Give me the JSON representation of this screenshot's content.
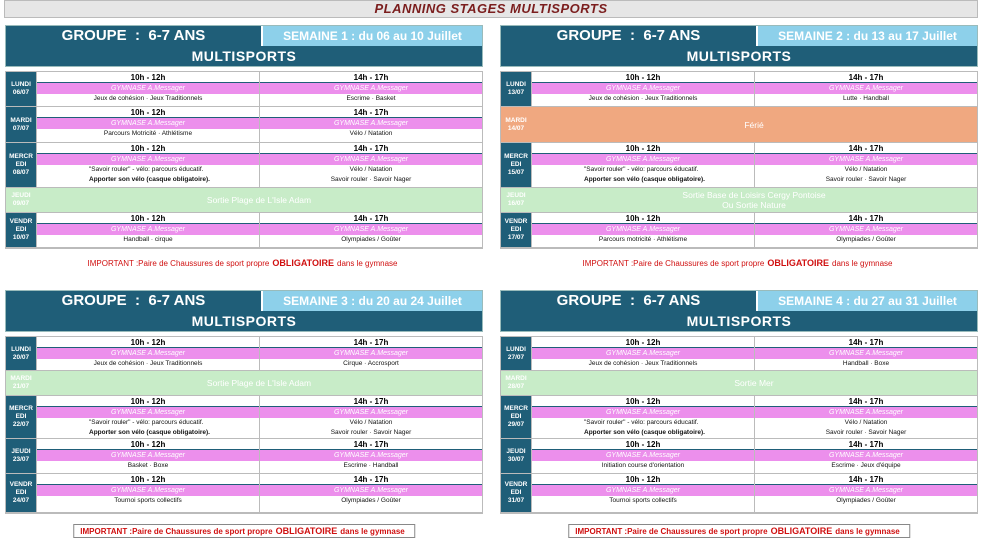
{
  "title": "PLANNING STAGES MULTISPORTS",
  "weeks": [
    {
      "group": "GROUPE  :  6-7 ANS",
      "week": "SEMAINE 1 : du 06 au 10 Juillet",
      "activity": "MULTISPORTS",
      "days": [
        {
          "day": "LUNDI",
          "date": "06/07",
          "slots": [
            {
              "time": "10h - 12h",
              "place": "GYMNASE A.Messager",
              "lines": [
                "Jeux de cohésion · Jeux Traditionnels"
              ]
            },
            {
              "time": "14h - 17h",
              "place": "GYMNASE A.Messager",
              "lines": [
                "Escrime · Basket"
              ]
            }
          ]
        },
        {
          "day": "MARDI",
          "date": "07/07",
          "slots": [
            {
              "time": "10h - 12h",
              "place": "GYMNASE A.Messager",
              "lines": [
                "Parcours Motricité · Athlétisme"
              ]
            },
            {
              "time": "14h - 17h",
              "place": "GYMNASE A.Messager",
              "lines": [
                "Vélo / Natation"
              ]
            }
          ]
        },
        {
          "day": "MERCREDI",
          "date": "08/07",
          "slots": [
            {
              "time": "10h - 12h",
              "place": "GYMNASE A.Messager",
              "lines": [
                "\"Savoir rouler\" - vélo: parcours éducatif."
              ],
              "note": "Apporter son vélo (casque obligatoire)."
            },
            {
              "time": "14h - 17h",
              "place": "GYMNASE A.Messager",
              "lines": [
                "Vélo / Natation",
                "Savoir rouler · Savoir Nager"
              ]
            }
          ]
        },
        {
          "day": "JEUDI",
          "date": "09/07",
          "outing": [
            "Sortie Plage de L'Isle Adam"
          ]
        },
        {
          "day": "VENDREDI",
          "date": "10/07",
          "slots": [
            {
              "time": "10h - 12h",
              "place": "GYMNASE A.Messager",
              "lines": [
                "Handball · cirque"
              ]
            },
            {
              "time": "14h - 17h",
              "place": "GYMNASE A.Messager",
              "lines": [
                "Olympiades / Goûter"
              ]
            }
          ]
        }
      ],
      "notice": {
        "lead": "IMPORTANT :Paire de Chaussures de sport propre",
        "strong": "OBLIGATOIRE",
        "tail": "dans le gymnase"
      }
    },
    {
      "group": "GROUPE  :  6-7 ANS",
      "week": "SEMAINE 2 : du 13 au 17 Juillet",
      "activity": "MULTISPORTS",
      "days": [
        {
          "day": "LUNDI",
          "date": "13/07",
          "slots": [
            {
              "time": "10h - 12h",
              "place": "GYMNASE A.Messager",
              "lines": [
                "Jeux de cohésion · Jeux Traditionnels"
              ]
            },
            {
              "time": "14h - 17h",
              "place": "GYMNASE A.Messager",
              "lines": [
                "Lutte · Handball"
              ]
            }
          ]
        },
        {
          "day": "MARDI",
          "date": "14/07",
          "holiday": "Férié"
        },
        {
          "day": "MERCREDI",
          "date": "15/07",
          "slots": [
            {
              "time": "10h - 12h",
              "place": "GYMNASE A.Messager",
              "lines": [
                "\"Savoir rouler\" - vélo: parcours éducatif."
              ],
              "note": "Apporter son vélo (casque obligatoire)."
            },
            {
              "time": "14h - 17h",
              "place": "GYMNASE A.Messager",
              "lines": [
                "Vélo / Natation",
                "Savoir rouler · Savoir Nager"
              ]
            }
          ]
        },
        {
          "day": "JEUDI",
          "date": "16/07",
          "outing": [
            "Sortie Base de Loisirs Cergy Pontoise",
            "Ou Sortie Nature"
          ]
        },
        {
          "day": "VENDREDI",
          "date": "17/07",
          "slots": [
            {
              "time": "10h - 12h",
              "place": "GYMNASE A.Messager",
              "lines": [
                "Parcours motricité · Athlétisme"
              ]
            },
            {
              "time": "14h - 17h",
              "place": "GYMNASE A.Messager",
              "lines": [
                "Olympiades / Goûter"
              ]
            }
          ]
        }
      ],
      "notice": {
        "lead": "IMPORTANT :Paire de Chaussures de sport propre",
        "strong": "OBLIGATOIRE",
        "tail": "dans le gymnase"
      }
    },
    {
      "group": "GROUPE  :  6-7 ANS",
      "week": "SEMAINE 3 : du 20 au 24 Juillet",
      "activity": "MULTISPORTS",
      "days": [
        {
          "day": "LUNDI",
          "date": "20/07",
          "slots": [
            {
              "time": "10h - 12h",
              "place": "GYMNASE A.Messager",
              "lines": [
                "Jeux de cohésion · Jeux Traditionnels"
              ]
            },
            {
              "time": "14h - 17h",
              "place": "GYMNASE A.Messager",
              "lines": [
                "Cirque · Accrosport"
              ]
            }
          ]
        },
        {
          "day": "MARDI",
          "date": "21/07",
          "outing": [
            "Sortie Plage de L'Isle Adam"
          ]
        },
        {
          "day": "MERCREDI",
          "date": "22/07",
          "slots": [
            {
              "time": "10h - 12h",
              "place": "GYMNASE A.Messager",
              "lines": [
                "\"Savoir rouler\" - vélo: parcours éducatif."
              ],
              "note": "Apporter son vélo (casque obligatoire)."
            },
            {
              "time": "14h - 17h",
              "place": "GYMNASE A.Messager",
              "lines": [
                "Vélo / Natation",
                "Savoir rouler · Savoir Nager"
              ]
            }
          ]
        },
        {
          "day": "JEUDI",
          "date": "23/07",
          "slots": [
            {
              "time": "10h - 12h",
              "place": "GYMNASE A.Messager",
              "lines": [
                "Basket · Boxe"
              ]
            },
            {
              "time": "14h - 17h",
              "place": "GYMNASE A.Messager",
              "lines": [
                "Escrime · Handball"
              ]
            }
          ]
        },
        {
          "day": "VENDREDI",
          "date": "24/07",
          "slots": [
            {
              "time": "10h - 12h",
              "place": "GYMNASE A.Messager",
              "lines": [
                "Tournoi sports collectifs"
              ]
            },
            {
              "time": "14h - 17h",
              "place": "GYMNASE A.Messager",
              "lines": [
                "Olympiades / Goûter"
              ]
            }
          ]
        }
      ],
      "notice": {
        "lead": "IMPORTANT :Paire de Chaussures de sport propre",
        "strong": "OBLIGATOIRE",
        "tail": "dans le gymnase"
      }
    },
    {
      "group": "GROUPE  :  6-7 ANS",
      "week": "SEMAINE 4 : du 27 au 31 Juillet",
      "activity": "MULTISPORTS",
      "days": [
        {
          "day": "LUNDI",
          "date": "27/07",
          "slots": [
            {
              "time": "10h - 12h",
              "place": "GYMNASE A.Messager",
              "lines": [
                "Jeux de cohésion · Jeux Traditionnels"
              ]
            },
            {
              "time": "14h - 17h",
              "place": "GYMNASE A.Messager",
              "lines": [
                "Handball · Boxe"
              ]
            }
          ]
        },
        {
          "day": "MARDI",
          "date": "28/07",
          "outing": [
            "Sortie Mer"
          ]
        },
        {
          "day": "MERCREDI",
          "date": "29/07",
          "slots": [
            {
              "time": "10h - 12h",
              "place": "GYMNASE A.Messager",
              "lines": [
                "\"Savoir rouler\" - vélo: parcours éducatif."
              ],
              "note": "Apporter son vélo (casque obligatoire)."
            },
            {
              "time": "14h - 17h",
              "place": "GYMNASE A.Messager",
              "lines": [
                "Vélo / Natation",
                "Savoir rouler · Savoir Nager"
              ]
            }
          ]
        },
        {
          "day": "JEUDI",
          "date": "30/07",
          "slots": [
            {
              "time": "10h - 12h",
              "place": "GYMNASE A.Messager",
              "lines": [
                "Initiation course d'orientation"
              ]
            },
            {
              "time": "14h - 17h",
              "place": "GYMNASE A.Messager",
              "lines": [
                "Escrime · Jeux d'équipe"
              ]
            }
          ]
        },
        {
          "day": "VENDREDI",
          "date": "31/07",
          "slots": [
            {
              "time": "10h - 12h",
              "place": "GYMNASE A.Messager",
              "lines": [
                "Tournoi sports collectifs"
              ]
            },
            {
              "time": "14h - 17h",
              "place": "GYMNASE A.Messager",
              "lines": [
                "Olympiades / Goûter"
              ]
            }
          ]
        }
      ],
      "notice": {
        "lead": "IMPORTANT :Paire de Chaussures de sport propre",
        "strong": "OBLIGATOIRE",
        "tail": "dans le gymnase"
      }
    }
  ]
}
